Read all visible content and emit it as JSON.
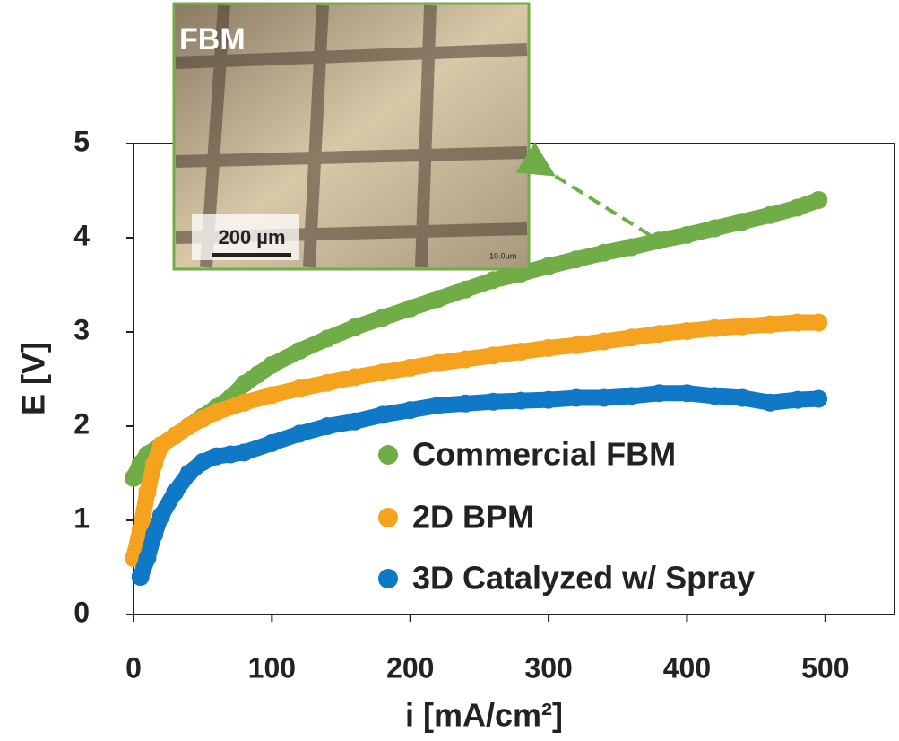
{
  "chart_data": {
    "type": "scatter",
    "xlabel": "i [mA/cm²]",
    "ylabel": "E [V]",
    "xlim": [
      0,
      550
    ],
    "ylim": [
      0,
      5
    ],
    "xticks": [
      0,
      100,
      200,
      300,
      400,
      500
    ],
    "yticks": [
      0,
      1,
      2,
      3,
      4,
      5
    ],
    "series": [
      {
        "name": "Commercial FBM",
        "color": "#70ad47",
        "x": [
          0,
          5,
          10,
          20,
          30,
          40,
          50,
          60,
          70,
          80,
          90,
          100,
          120,
          140,
          160,
          180,
          200,
          220,
          240,
          260,
          280,
          300,
          320,
          340,
          360,
          380,
          400,
          420,
          440,
          460,
          480,
          495
        ],
        "values": [
          1.45,
          1.6,
          1.7,
          1.8,
          1.9,
          2.0,
          2.1,
          2.2,
          2.3,
          2.45,
          2.55,
          2.65,
          2.8,
          2.93,
          3.05,
          3.15,
          3.25,
          3.35,
          3.45,
          3.55,
          3.62,
          3.7,
          3.77,
          3.84,
          3.9,
          3.97,
          4.03,
          4.1,
          4.17,
          4.24,
          4.32,
          4.4
        ]
      },
      {
        "name": "2D BPM",
        "color": "#f5a21e",
        "x": [
          0,
          5,
          10,
          15,
          20,
          30,
          40,
          50,
          60,
          80,
          100,
          120,
          140,
          160,
          180,
          200,
          220,
          240,
          260,
          280,
          300,
          320,
          340,
          360,
          380,
          400,
          420,
          440,
          460,
          480,
          495
        ],
        "values": [
          0.6,
          0.9,
          1.3,
          1.6,
          1.8,
          1.9,
          2.0,
          2.08,
          2.15,
          2.25,
          2.33,
          2.4,
          2.46,
          2.52,
          2.57,
          2.62,
          2.67,
          2.71,
          2.75,
          2.79,
          2.83,
          2.86,
          2.9,
          2.94,
          2.98,
          3.01,
          3.04,
          3.06,
          3.08,
          3.1,
          3.1
        ]
      },
      {
        "name": "3D Catalyzed w/ Spray",
        "color": "#0f79c8",
        "x": [
          5,
          10,
          15,
          20,
          30,
          40,
          50,
          60,
          70,
          80,
          100,
          120,
          140,
          160,
          180,
          200,
          220,
          240,
          260,
          280,
          300,
          320,
          340,
          360,
          380,
          400,
          420,
          440,
          460,
          480,
          495
        ],
        "values": [
          0.4,
          0.6,
          0.85,
          1.05,
          1.3,
          1.5,
          1.62,
          1.68,
          1.7,
          1.72,
          1.82,
          1.92,
          2.0,
          2.05,
          2.12,
          2.17,
          2.22,
          2.24,
          2.26,
          2.27,
          2.28,
          2.3,
          2.3,
          2.32,
          2.35,
          2.35,
          2.32,
          2.3,
          2.25,
          2.28,
          2.29
        ]
      }
    ],
    "inset": {
      "label": "FBM",
      "scale_bar": "200 µm",
      "small_label": "10.0µm"
    }
  }
}
